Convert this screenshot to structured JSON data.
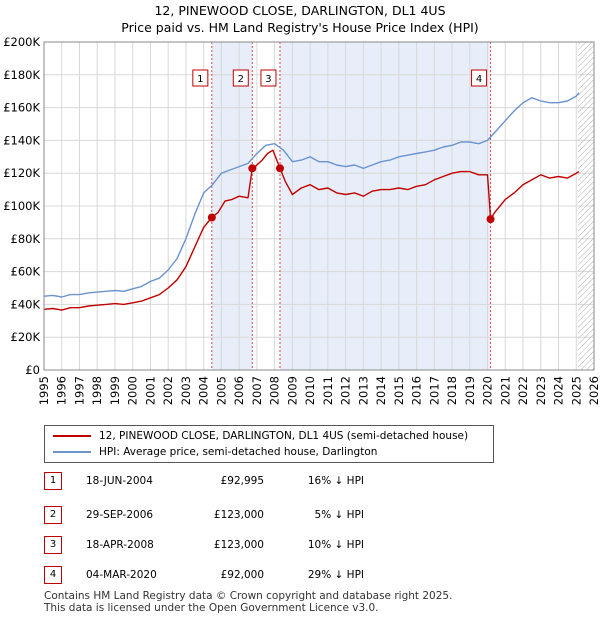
{
  "chart_data": {
    "type": "line",
    "title": "12, PINEWOOD CLOSE, DARLINGTON, DL1 4US",
    "subtitle": "Price paid vs. HM Land Registry's House Price Index (HPI)",
    "xlim": [
      1995,
      2026
    ],
    "ylim": [
      0,
      200000
    ],
    "x_ticks": [
      1995,
      1996,
      1997,
      1998,
      1999,
      2000,
      2001,
      2002,
      2003,
      2004,
      2005,
      2006,
      2007,
      2008,
      2009,
      2010,
      2011,
      2012,
      2013,
      2014,
      2015,
      2016,
      2017,
      2018,
      2019,
      2020,
      2021,
      2022,
      2023,
      2024,
      2025,
      2026
    ],
    "y_ticks": [
      0,
      20000,
      40000,
      60000,
      80000,
      100000,
      120000,
      140000,
      160000,
      180000,
      200000
    ],
    "y_tick_labels": [
      "£0",
      "£20K",
      "£40K",
      "£60K",
      "£80K",
      "£100K",
      "£120K",
      "£140K",
      "£160K",
      "£180K",
      "£200K"
    ],
    "grid": true,
    "future_hatch_from": 2025.1,
    "colors": {
      "property": "#c00000",
      "hpi": "#6a93d0",
      "band": "#e8eef9",
      "vline": "#dd4444"
    },
    "series": [
      {
        "name": "12, PINEWOOD CLOSE, DARLINGTON, DL1 4US (semi-detached house)",
        "x": [
          1995,
          1995.5,
          1996,
          1996.5,
          1997,
          1997.5,
          1998,
          1998.5,
          1999,
          1999.5,
          2000,
          2000.5,
          2001,
          2001.5,
          2002,
          2002.5,
          2003,
          2003.5,
          2004,
          2004.46,
          2004.8,
          2005.2,
          2005.6,
          2006,
          2006.5,
          2006.74,
          2006.9,
          2007.3,
          2007.6,
          2007.9,
          2008.3,
          2008.6,
          2009,
          2009.5,
          2010,
          2010.5,
          2011,
          2011.5,
          2012,
          2012.5,
          2013,
          2013.5,
          2014,
          2014.5,
          2015,
          2015.5,
          2016,
          2016.5,
          2017,
          2017.5,
          2018,
          2018.5,
          2019,
          2019.5,
          2020.0,
          2020.17,
          2020.4,
          2020.7,
          2021,
          2021.5,
          2022,
          2022.5,
          2023,
          2023.5,
          2024,
          2024.5,
          2025,
          2025.15
        ],
        "values": [
          37000,
          37500,
          36500,
          38000,
          38000,
          39000,
          39500,
          40000,
          40500,
          40000,
          41000,
          42000,
          44000,
          46000,
          50000,
          55000,
          63000,
          75000,
          87000,
          92995,
          96000,
          103000,
          104000,
          106000,
          105000,
          123000,
          124000,
          128000,
          132000,
          134000,
          123000,
          115000,
          107000,
          111000,
          113000,
          110000,
          111000,
          108000,
          107000,
          108000,
          106000,
          109000,
          110000,
          110000,
          111000,
          110000,
          112000,
          113000,
          116000,
          118000,
          120000,
          121000,
          121000,
          119000,
          119000,
          92000,
          96000,
          100000,
          104000,
          108000,
          113000,
          116000,
          119000,
          117000,
          118000,
          117000,
          120000,
          121000
        ]
      },
      {
        "name": "HPI: Average price, semi-detached house, Darlington",
        "x": [
          1995,
          1995.5,
          1996,
          1996.5,
          1997,
          1997.5,
          1998,
          1998.5,
          1999,
          1999.5,
          2000,
          2000.5,
          2001,
          2001.5,
          2002,
          2002.5,
          2003,
          2003.5,
          2004,
          2004.5,
          2005,
          2005.5,
          2006,
          2006.5,
          2007,
          2007.5,
          2008,
          2008.5,
          2009,
          2009.5,
          2010,
          2010.5,
          2011,
          2011.5,
          2012,
          2012.5,
          2013,
          2013.5,
          2014,
          2014.5,
          2015,
          2015.5,
          2016,
          2016.5,
          2017,
          2017.5,
          2018,
          2018.5,
          2019,
          2019.5,
          2020,
          2020.5,
          2021,
          2021.5,
          2022,
          2022.5,
          2023,
          2023.5,
          2024,
          2024.5,
          2025,
          2025.15
        ],
        "values": [
          45000,
          45500,
          44500,
          46000,
          46000,
          47000,
          47500,
          48000,
          48500,
          48000,
          49500,
          51000,
          54000,
          56000,
          61000,
          68000,
          80000,
          95000,
          108000,
          113000,
          120000,
          122000,
          124000,
          126000,
          132000,
          137000,
          138000,
          134000,
          127000,
          128000,
          130000,
          127000,
          127000,
          125000,
          124000,
          125000,
          123000,
          125000,
          127000,
          128000,
          130000,
          131000,
          132000,
          133000,
          134000,
          136000,
          137000,
          139000,
          139000,
          138000,
          140000,
          146000,
          152000,
          158000,
          163000,
          166000,
          164000,
          163000,
          163000,
          164000,
          167000,
          169000
        ]
      }
    ],
    "sales": [
      {
        "id": "1",
        "x": 2004.46,
        "value": 92995,
        "date": "18-JUN-2004",
        "price": "£92,995",
        "hpi_delta": "16% ↓ HPI"
      },
      {
        "id": "2",
        "x": 2006.74,
        "value": 123000,
        "date": "29-SEP-2006",
        "price": "£123,000",
        "hpi_delta": "5% ↓ HPI"
      },
      {
        "id": "3",
        "x": 2008.3,
        "value": 123000,
        "date": "18-APR-2008",
        "price": "£123,000",
        "hpi_delta": "10% ↓ HPI"
      },
      {
        "id": "4",
        "x": 2020.17,
        "value": 92000,
        "date": "04-MAR-2020",
        "price": "£92,000",
        "hpi_delta": "29% ↓ HPI"
      }
    ],
    "legend": {
      "property": "12, PINEWOOD CLOSE, DARLINGTON, DL1 4US (semi-detached house)",
      "hpi": "HPI: Average price, semi-detached house, Darlington"
    }
  },
  "footer": {
    "line1": "Contains HM Land Registry data © Crown copyright and database right 2025.",
    "line2": "This data is licensed under the Open Government Licence v3.0."
  }
}
